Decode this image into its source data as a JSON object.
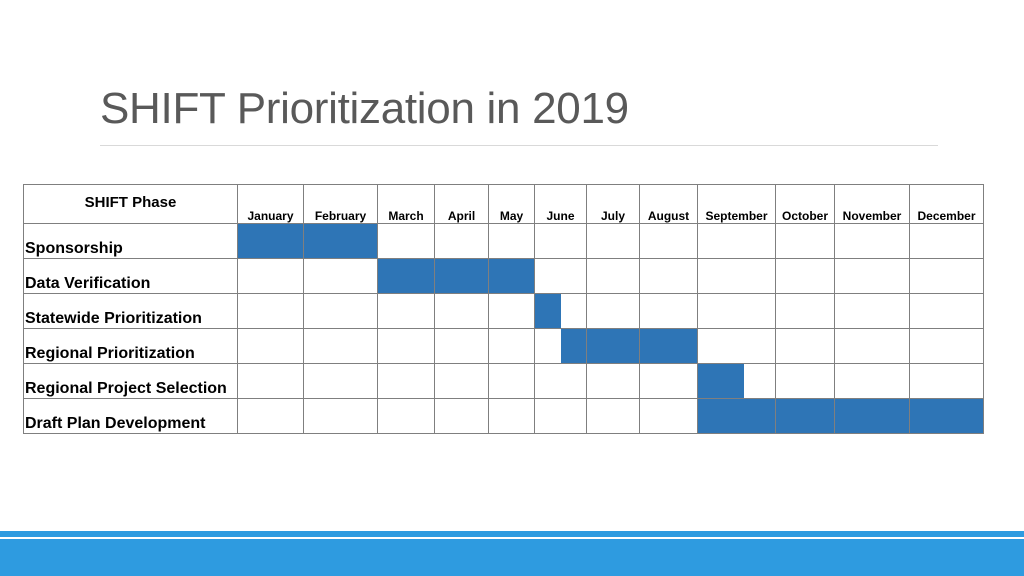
{
  "slide": {
    "title": "SHIFT Prioritization in 2019"
  },
  "colors": {
    "bar": "#2e75b6",
    "footer": "#2e9be0",
    "title": "#595959"
  },
  "chart_data": {
    "type": "table",
    "row_header": "SHIFT Phase",
    "months": [
      "January",
      "February",
      "March",
      "April",
      "May",
      "June",
      "July",
      "August",
      "September",
      "October",
      "November",
      "December"
    ],
    "phases": [
      {
        "name": "Sponsorship",
        "start": 0,
        "end": 2
      },
      {
        "name": "Data Verification",
        "start": 2,
        "end": 5
      },
      {
        "name": "Statewide Prioritization",
        "start": 5,
        "end": 5.5
      },
      {
        "name": "Regional Prioritization",
        "start": 5.5,
        "end": 8
      },
      {
        "name": "Regional Project Selection",
        "start": 8,
        "end": 8.6
      },
      {
        "name": "Draft Plan Development",
        "start": 8,
        "end": 12
      }
    ]
  }
}
